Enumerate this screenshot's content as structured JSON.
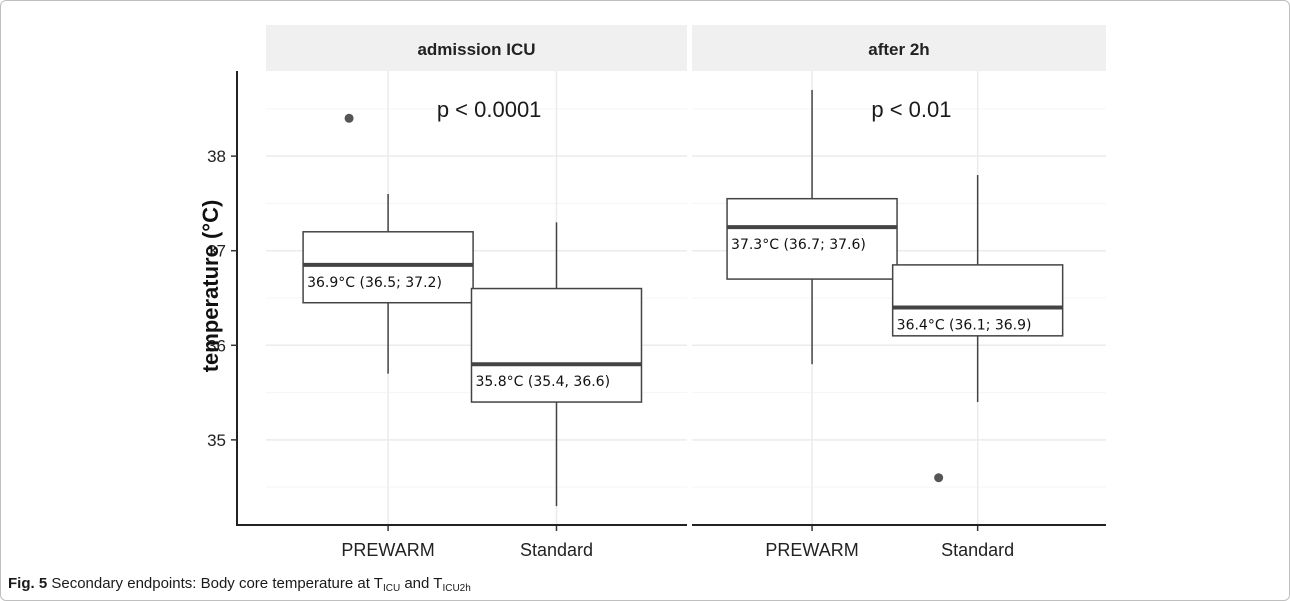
{
  "chart_data": {
    "type": "boxplot",
    "ylabel": "temperature (°C)",
    "yticks": [
      35,
      36,
      37,
      38
    ],
    "ylim": [
      34.1,
      38.9
    ],
    "grid": true,
    "panels": [
      {
        "title": "admission ICU",
        "pvalue": "p < 0.0001",
        "categories": [
          "PREWARM",
          "Standard"
        ],
        "boxes": [
          {
            "category": "PREWARM",
            "whisker_low": 35.7,
            "q1": 36.45,
            "median": 36.85,
            "q3": 37.2,
            "whisker_high": 37.6,
            "outliers": [
              38.4
            ],
            "label": "36.9°C (36.5; 37.2)"
          },
          {
            "category": "Standard",
            "whisker_low": 34.3,
            "q1": 35.4,
            "median": 35.8,
            "q3": 36.6,
            "whisker_high": 37.3,
            "outliers": [],
            "label": "35.8°C (35.4, 36.6)"
          }
        ]
      },
      {
        "title": "after 2h",
        "pvalue": "p < 0.01",
        "categories": [
          "PREWARM",
          "Standard"
        ],
        "boxes": [
          {
            "category": "PREWARM",
            "whisker_low": 35.8,
            "q1": 36.7,
            "median": 37.25,
            "q3": 37.55,
            "whisker_high": 38.7,
            "outliers": [],
            "label": "37.3°C (36.7; 37.6)"
          },
          {
            "category": "Standard",
            "whisker_low": 35.4,
            "q1": 36.1,
            "median": 36.4,
            "q3": 36.85,
            "whisker_high": 37.8,
            "outliers": [
              34.6
            ],
            "label": "36.4°C (36.1; 36.9)"
          }
        ]
      }
    ]
  },
  "caption": {
    "fig_label": "Fig. 5",
    "text_before": "Secondary endpoints: Body core temperature at T",
    "sub1": "ICU",
    "text_middle": " and T",
    "sub2": "ICU2h"
  }
}
